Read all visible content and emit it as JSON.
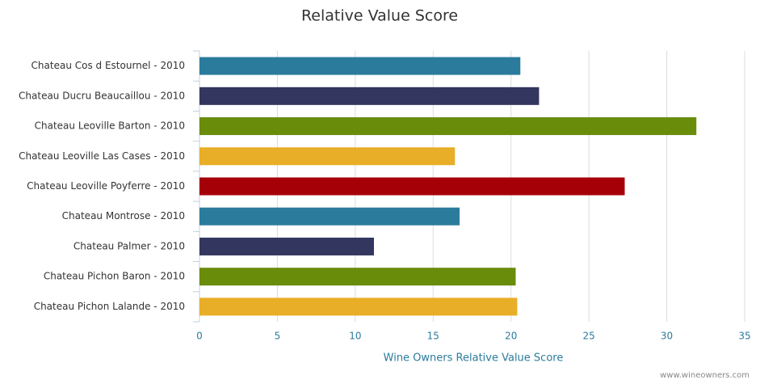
{
  "chart_data": {
    "type": "bar",
    "orientation": "horizontal",
    "title": "Relative Value Score",
    "categories": [
      "Chateau Cos d Estournel - 2010",
      "Chateau Ducru Beaucaillou - 2010",
      "Chateau Leoville Barton - 2010",
      "Chateau Leoville Las Cases - 2010",
      "Chateau Leoville Poyferre - 2010",
      "Chateau Montrose - 2010",
      "Chateau Palmer - 2010",
      "Chateau Pichon Baron - 2010",
      "Chateau Pichon Lalande - 2010"
    ],
    "values": [
      20.6,
      21.8,
      31.9,
      16.4,
      27.3,
      16.7,
      11.2,
      20.3,
      20.4
    ],
    "colors": [
      "#2b7b9c",
      "#33365f",
      "#698c0b",
      "#e8ae27",
      "#a50008",
      "#2b7b9c",
      "#33365f",
      "#698c0b",
      "#e8ae27"
    ],
    "xlabel": "Wine Owners Relative Value Score",
    "xlim": [
      0,
      35
    ],
    "xticks": [
      0,
      5,
      10,
      15,
      20,
      25,
      30,
      35
    ],
    "grid": true,
    "credit": "www.wineowners.com"
  }
}
